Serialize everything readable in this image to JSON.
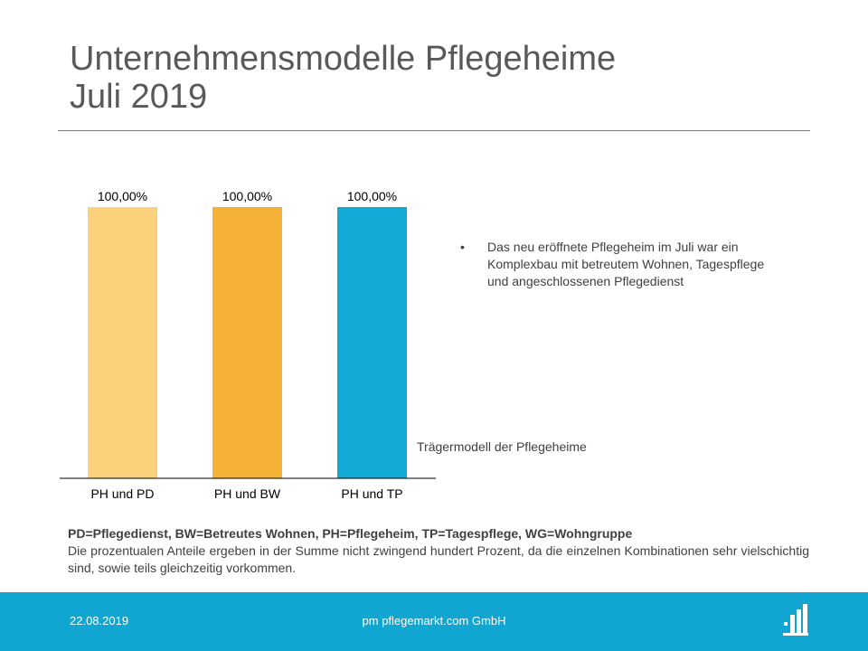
{
  "slide": {
    "title_line1": "Unternehmensmodelle Pflegeheime",
    "title_line2": "Juli 2019",
    "bullet": "Das neu eröffnete Pflegeheim im Juli war ein Komplexbau mit betreutem Wohnen, Tagespflege und angeschlossenen Pflegedienst",
    "bullet_symbol": "•",
    "abbreviations": "PD=Pflegedienst, BW=Betreutes Wohnen, PH=Pflegeheim, TP=Tagespflege, WG=Wohngruppe",
    "note": "Die prozentualen Anteile ergeben in der Summe nicht zwingend hundert Prozent, da die einzelnen Kombinationen sehr vielschichtig sind, sowie teils gleichzeitig vorkommen."
  },
  "footer": {
    "date": "22.08.2019",
    "company": "pm pflegemarkt.com GmbH",
    "background_color": "#11a6d2",
    "logo_icon": "bar-chart-logo-icon"
  },
  "chart_data": {
    "type": "bar",
    "categories": [
      "PH und PD",
      "PH und BW",
      "PH und TP"
    ],
    "values": [
      100,
      100,
      100
    ],
    "data_labels": [
      "100,00%",
      "100,00%",
      "100,00%"
    ],
    "colors": [
      "#fbd27b",
      "#f4b135",
      "#12a9d5"
    ],
    "title": "",
    "xlabel": "Trägermodell der Pflegeheime",
    "ylabel": "",
    "ylim": [
      0,
      100
    ],
    "grid": false,
    "legend": "none"
  }
}
